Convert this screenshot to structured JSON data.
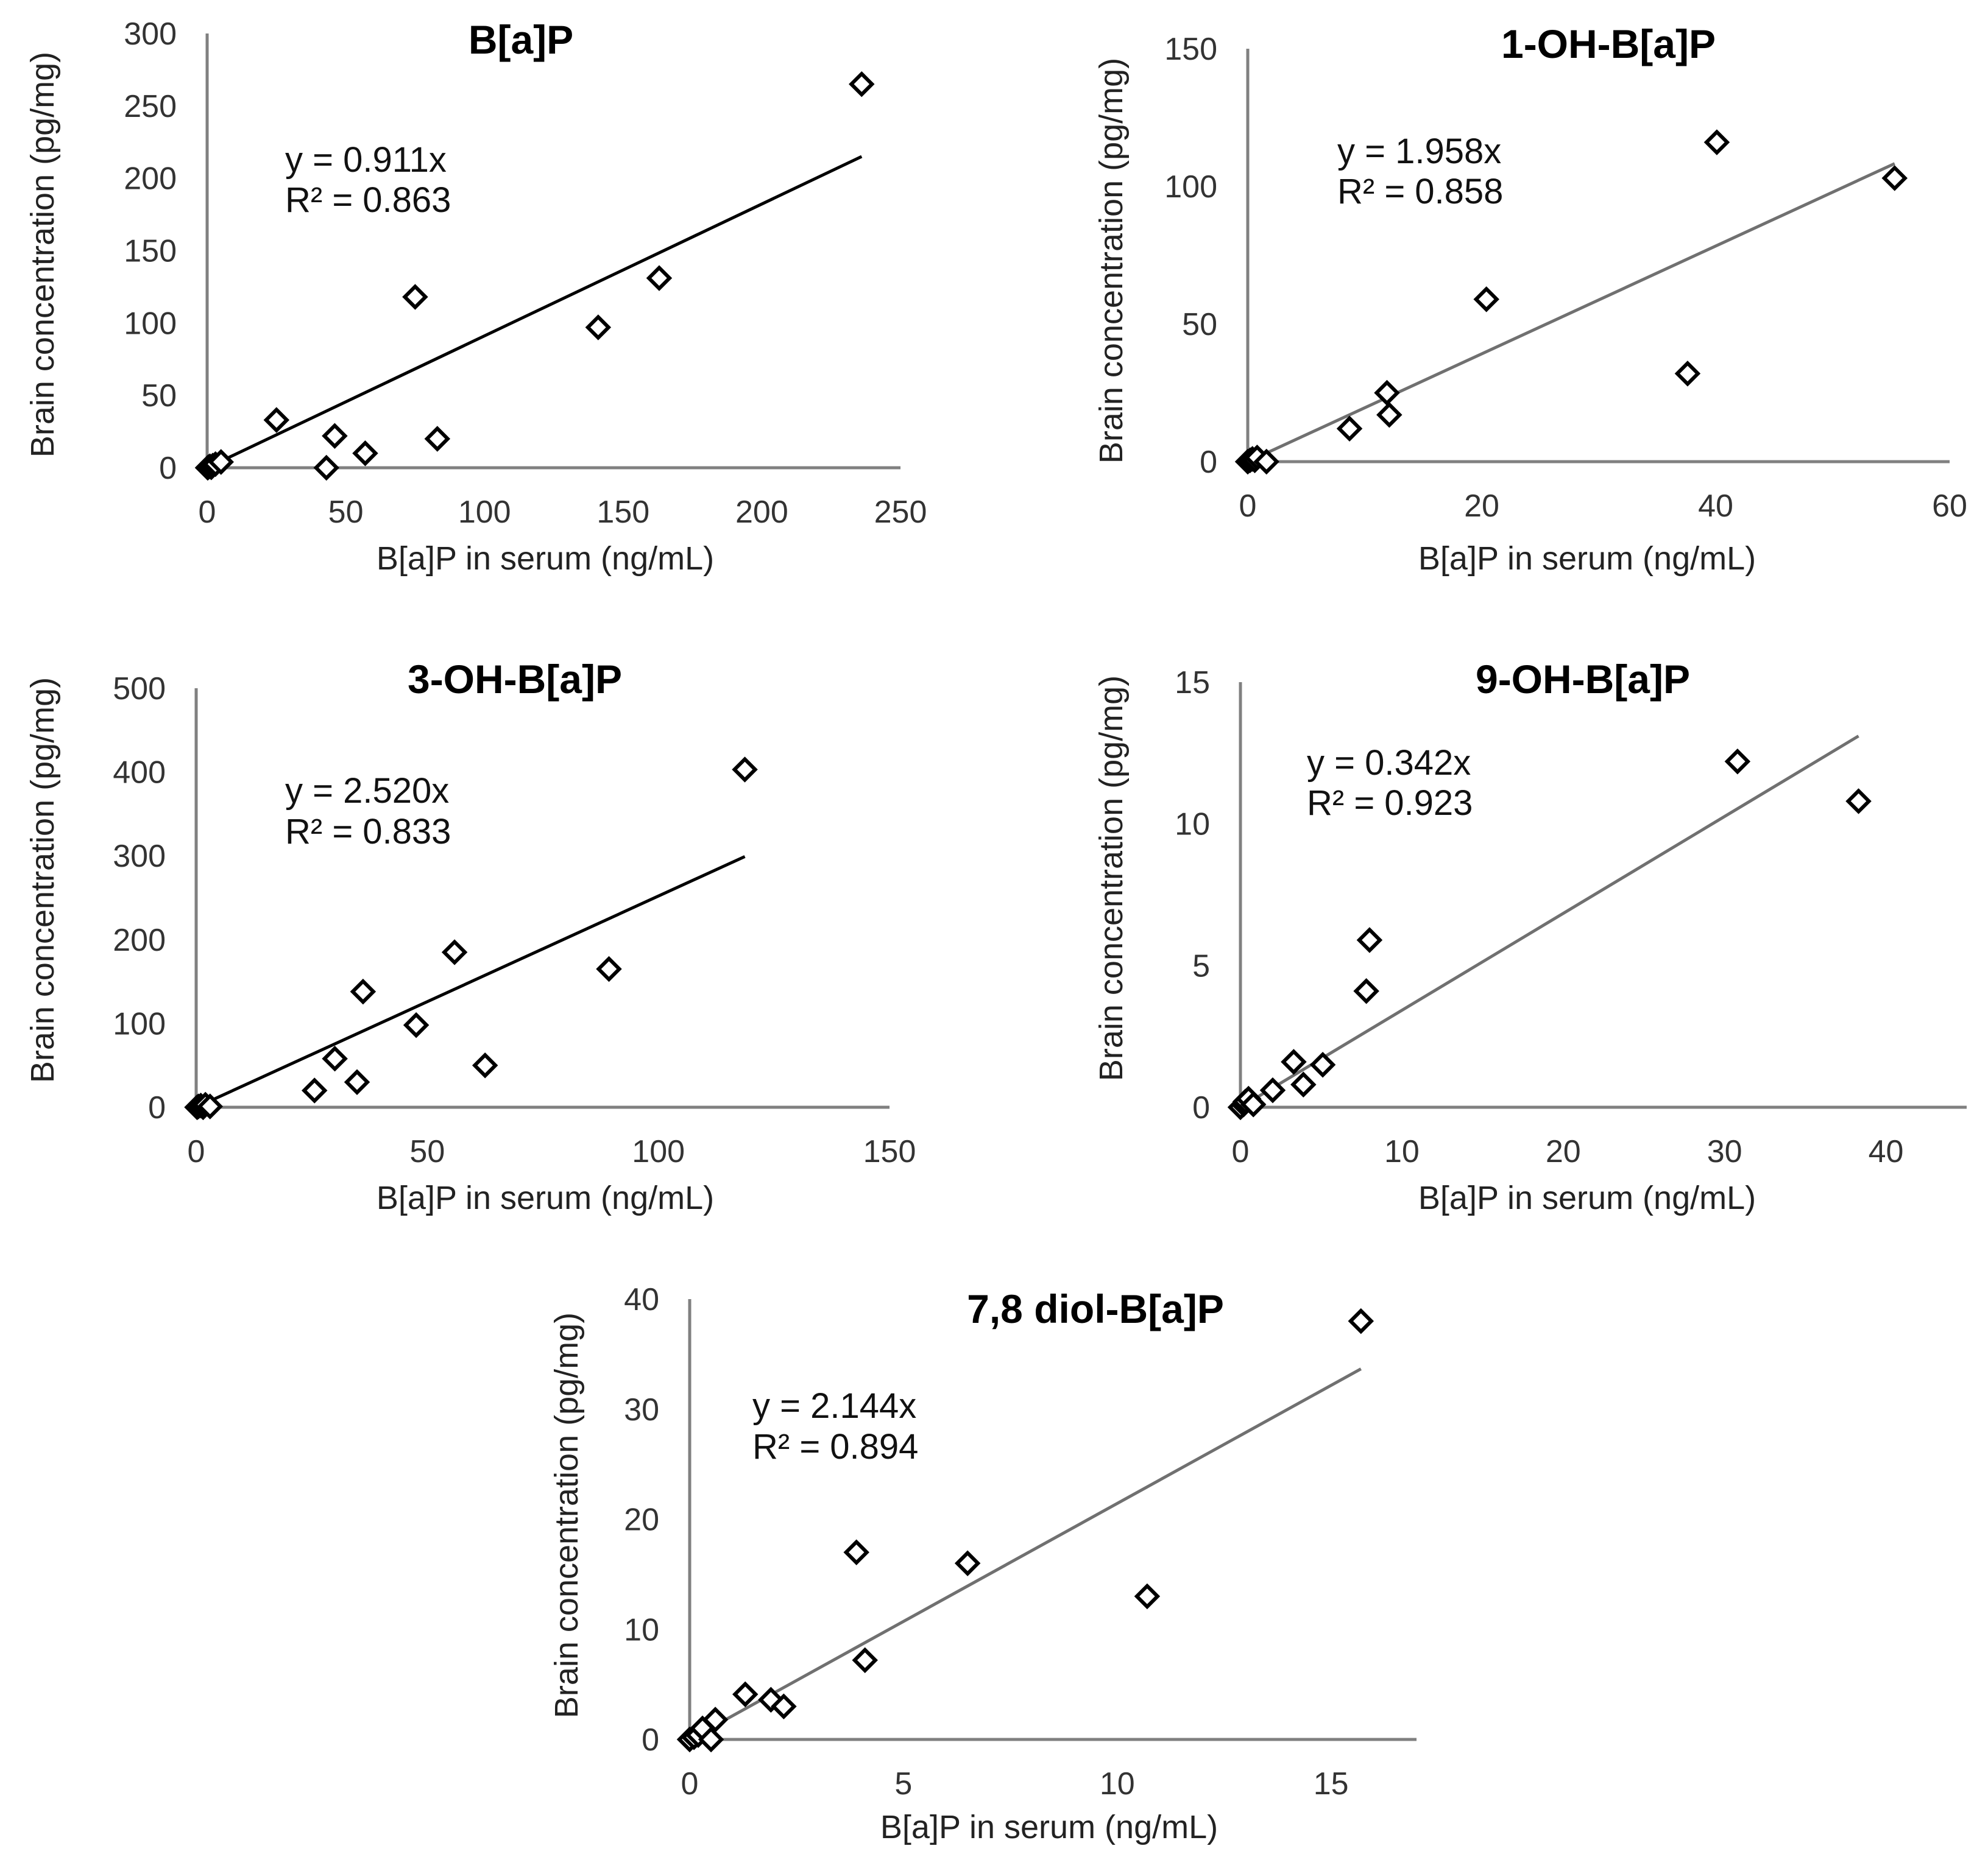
{
  "figure": {
    "axis_color": "#808080",
    "marker_color": "#000000"
  },
  "chart_data": [
    {
      "type": "scatter",
      "title": "B[a]P",
      "xlabel": "B[a]P in serum (ng/mL)",
      "ylabel": "Brain concentration (pg/mg)",
      "xlim": [
        0,
        250
      ],
      "ylim": [
        0,
        300
      ],
      "xticks": [
        0,
        50,
        100,
        150,
        200,
        250
      ],
      "yticks": [
        0,
        50,
        100,
        150,
        200,
        250,
        300
      ],
      "points": [
        [
          0.2,
          0
        ],
        [
          0.5,
          0.5
        ],
        [
          1,
          1
        ],
        [
          1.5,
          0.3
        ],
        [
          2,
          1.5
        ],
        [
          3,
          2.5
        ],
        [
          5,
          4
        ],
        [
          25,
          33
        ],
        [
          43,
          0
        ],
        [
          46,
          22
        ],
        [
          57,
          10
        ],
        [
          75,
          118
        ],
        [
          83,
          20
        ],
        [
          141,
          97
        ],
        [
          163,
          131
        ],
        [
          236,
          265
        ]
      ],
      "trendline": {
        "slope": 0.911,
        "x_end": 236,
        "color": "#000000"
      },
      "equation": "y = 0.911x",
      "r2": "R² = 0.863"
    },
    {
      "type": "scatter",
      "title": "1-OH-B[a]P",
      "xlabel": "B[a]P in serum (ng/mL)",
      "ylabel": "Brain concentration (pg/mg)",
      "xlim": [
        0,
        60
      ],
      "ylim": [
        0,
        150
      ],
      "xticks": [
        0,
        20,
        40,
        60
      ],
      "yticks": [
        0,
        50,
        100,
        150
      ],
      "points": [
        [
          0,
          0
        ],
        [
          0.2,
          0.5
        ],
        [
          0.4,
          1
        ],
        [
          0.6,
          0.5
        ],
        [
          0.8,
          1.5
        ],
        [
          1.6,
          0
        ],
        [
          8.7,
          12
        ],
        [
          11.9,
          25
        ],
        [
          12.1,
          17
        ],
        [
          20.4,
          59
        ],
        [
          37.6,
          32
        ],
        [
          40.1,
          116
        ],
        [
          55.3,
          103
        ]
      ],
      "trendline": {
        "slope": 1.958,
        "x_end": 55.3,
        "color": "#707070"
      },
      "equation": "y = 1.958x",
      "r2": "R² = 0.858"
    },
    {
      "type": "scatter",
      "title": "3-OH-B[a]P",
      "xlabel": "B[a]P in serum (ng/mL)",
      "ylabel": "Brain concentration (pg/mg)",
      "xlim": [
        0,
        150
      ],
      "ylim": [
        0,
        500
      ],
      "xticks": [
        0,
        50,
        100,
        150
      ],
      "yticks": [
        0,
        100,
        200,
        300,
        400,
        500
      ],
      "points": [
        [
          0.2,
          0
        ],
        [
          0.5,
          1
        ],
        [
          1,
          2
        ],
        [
          1.5,
          0
        ],
        [
          2,
          3
        ],
        [
          3,
          1
        ],
        [
          25.6,
          20
        ],
        [
          30,
          58
        ],
        [
          34.8,
          30
        ],
        [
          36.1,
          138
        ],
        [
          47.6,
          98
        ],
        [
          55.9,
          185
        ],
        [
          62.5,
          50
        ],
        [
          89.3,
          165
        ],
        [
          118.7,
          403
        ]
      ],
      "trendline": {
        "slope": 2.52,
        "x_end": 118.7,
        "color": "#000000"
      },
      "equation": "y = 2.520x",
      "r2": "R² = 0.833"
    },
    {
      "type": "scatter",
      "title": "9-OH-B[a]P",
      "xlabel": "B[a]P in serum (ng/mL)",
      "ylabel": "Brain concentration (pg/mg)",
      "xlim": [
        0,
        45
      ],
      "ylim": [
        0,
        15
      ],
      "xticks": [
        0,
        10,
        20,
        30,
        40
      ],
      "yticks": [
        0,
        5,
        10,
        15
      ],
      "points": [
        [
          0,
          0
        ],
        [
          0.2,
          0.1
        ],
        [
          0.3,
          0.2
        ],
        [
          0.5,
          0.3
        ],
        [
          0.8,
          0.1
        ],
        [
          2,
          0.6
        ],
        [
          3.3,
          1.6
        ],
        [
          3.9,
          0.8
        ],
        [
          5.1,
          1.5
        ],
        [
          7.8,
          4.1
        ],
        [
          8,
          5.9
        ],
        [
          30.8,
          12.2
        ],
        [
          38.3,
          10.8
        ]
      ],
      "trendline": {
        "slope": 0.342,
        "x_end": 38.3,
        "color": "#707070"
      },
      "equation": "y = 0.342x",
      "r2": "R² = 0.923"
    },
    {
      "type": "scatter",
      "title": "7,8 diol-B[a]P",
      "xlabel": "B[a]P in serum (ng/mL)",
      "ylabel": "Brain concentration (pg/mg)",
      "xlim": [
        0,
        17
      ],
      "ylim": [
        0,
        40
      ],
      "xticks": [
        0,
        5,
        10,
        15
      ],
      "yticks": [
        0,
        10,
        20,
        30,
        40
      ],
      "points": [
        [
          0,
          0
        ],
        [
          0.1,
          0.2
        ],
        [
          0.2,
          0.4
        ],
        [
          0.3,
          1
        ],
        [
          0.5,
          0
        ],
        [
          0.6,
          1.8
        ],
        [
          1.3,
          4.1
        ],
        [
          1.9,
          3.6
        ],
        [
          2.2,
          3
        ],
        [
          3.9,
          17
        ],
        [
          4.1,
          7.2
        ],
        [
          6.5,
          16
        ],
        [
          10.7,
          13
        ],
        [
          15.7,
          38
        ]
      ],
      "trendline": {
        "slope": 2.144,
        "x_end": 15.7,
        "color": "#707070"
      },
      "equation": "y = 2.144x",
      "r2": "R² = 0.894"
    }
  ]
}
